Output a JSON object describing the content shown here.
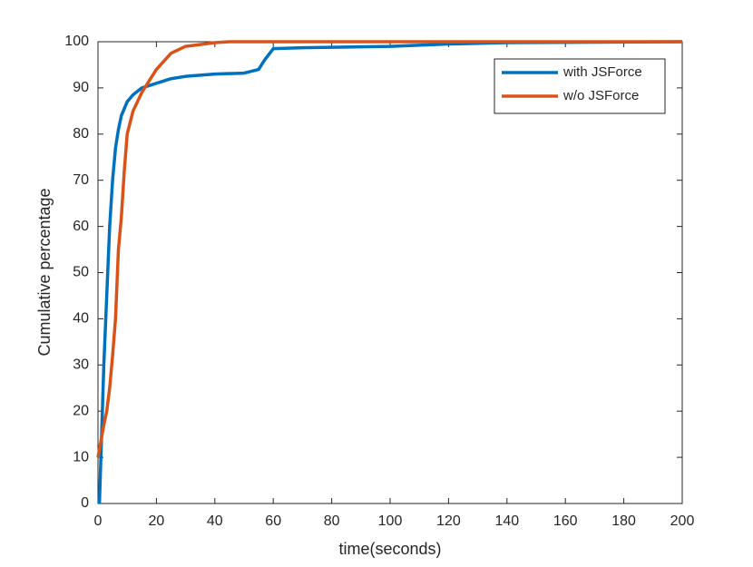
{
  "chart_data": {
    "type": "line",
    "xlabel": "time(seconds)",
    "ylabel": "Cumulative percentage",
    "xlim": [
      0,
      200
    ],
    "xticks": [
      0,
      20,
      40,
      60,
      80,
      100,
      120,
      140,
      160,
      180,
      200
    ],
    "ylim": [
      0,
      100
    ],
    "yticks": [
      0,
      10,
      20,
      30,
      40,
      50,
      60,
      70,
      80,
      90,
      100
    ],
    "grid": false,
    "legend": "northeast",
    "series": [
      {
        "name": "with JSForce",
        "color": "#0072BD",
        "x": [
          0.5,
          1,
          2,
          3,
          4,
          5,
          6,
          7,
          8,
          10,
          12,
          15,
          20,
          25,
          30,
          40,
          50,
          55,
          57,
          60,
          70,
          80,
          100,
          120,
          140,
          200
        ],
        "values": [
          0,
          10,
          30,
          45,
          60,
          70,
          77,
          81,
          84,
          87,
          88.5,
          90,
          91,
          92,
          92.5,
          93,
          93.2,
          94,
          96,
          98.5,
          98.7,
          98.8,
          99,
          99.5,
          99.8,
          100
        ]
      },
      {
        "name": "w/o JSForce",
        "color": "#D95319",
        "x": [
          0,
          2,
          3,
          4,
          5,
          6,
          7,
          8,
          9,
          10,
          12,
          15,
          18,
          20,
          25,
          30,
          40,
          45,
          200
        ],
        "values": [
          10,
          17,
          20,
          25,
          32,
          40,
          55,
          62,
          72,
          80,
          85,
          89,
          92,
          94,
          97.5,
          99,
          99.8,
          100,
          100
        ]
      }
    ]
  }
}
